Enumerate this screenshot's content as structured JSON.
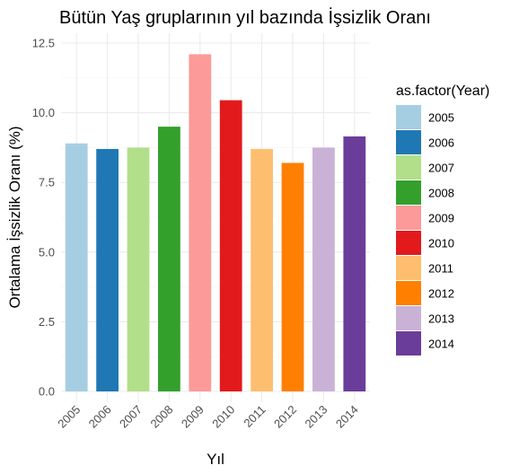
{
  "chart_data": {
    "type": "bar",
    "title": "Bütün Yaş gruplarının yıl bazında İşsizlik Oranı",
    "xlabel": "Yıl",
    "ylabel": "Ortalama İşsizlik Oranı (%)",
    "categories": [
      "2005",
      "2006",
      "2007",
      "2008",
      "2009",
      "2010",
      "2011",
      "2012",
      "2013",
      "2014"
    ],
    "values": [
      8.9,
      8.7,
      8.75,
      9.5,
      12.1,
      10.45,
      8.7,
      8.2,
      8.75,
      9.15
    ],
    "colors": [
      "#a6cee3",
      "#1f78b4",
      "#b2df8a",
      "#33a02c",
      "#fb9a99",
      "#e31a1c",
      "#fdbf6f",
      "#ff7f00",
      "#cab2d6",
      "#6a3d9a"
    ],
    "ylim": [
      0,
      12.5
    ],
    "yticks": [
      "0.0",
      "2.5",
      "5.0",
      "7.5",
      "10.0",
      "12.5"
    ],
    "grid": true,
    "legend": {
      "title": "as.factor(Year)",
      "placement": "right",
      "entries": [
        "2005",
        "2006",
        "2007",
        "2008",
        "2009",
        "2010",
        "2011",
        "2012",
        "2013",
        "2014"
      ]
    }
  }
}
